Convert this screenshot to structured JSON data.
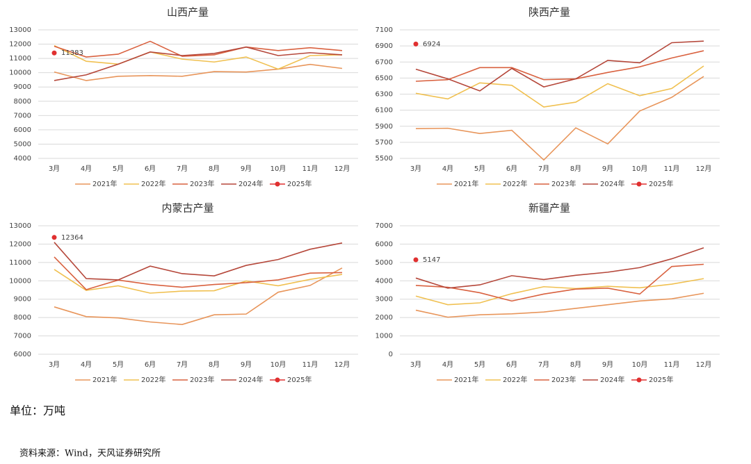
{
  "chart_data": [
    {
      "type": "line",
      "title": "山西产量",
      "categories": [
        "3月",
        "4月",
        "5月",
        "6月",
        "7月",
        "8月",
        "9月",
        "10月",
        "11月",
        "12月"
      ],
      "ylim": [
        4000,
        13000
      ],
      "yticks": [
        4000,
        5000,
        6000,
        7000,
        8000,
        9000,
        10000,
        11000,
        12000,
        13000
      ],
      "grid": true,
      "series": [
        {
          "name": "2021年",
          "color": "#e8955a",
          "values": [
            10050,
            9450,
            9750,
            9800,
            9750,
            10080,
            10050,
            10250,
            10580,
            10300
          ]
        },
        {
          "name": "2022年",
          "color": "#f0c050",
          "values": [
            11900,
            10800,
            10600,
            11450,
            10950,
            10750,
            11100,
            10250,
            11200,
            11250
          ]
        },
        {
          "name": "2023年",
          "color": "#d9613f",
          "values": [
            11850,
            11100,
            11300,
            12200,
            11150,
            11250,
            11800,
            11550,
            11750,
            11550
          ]
        },
        {
          "name": "2024年",
          "color": "#b5473a",
          "values": [
            9450,
            9850,
            10600,
            11450,
            11200,
            11350,
            11800,
            11200,
            11400,
            11250
          ]
        },
        {
          "name": "2025年",
          "color": "#e03030",
          "values": [
            11383,
            null,
            null,
            null,
            null,
            null,
            null,
            null,
            null,
            null
          ]
        }
      ]
    },
    {
      "type": "line",
      "title": "陕西产量",
      "categories": [
        "3月",
        "4月",
        "5月",
        "6月",
        "7月",
        "8月",
        "9月",
        "10月",
        "11月",
        "12月"
      ],
      "ylim": [
        5500,
        7100
      ],
      "yticks": [
        5500,
        5700,
        5900,
        6100,
        6300,
        6500,
        6700,
        6900,
        7100
      ],
      "grid": true,
      "series": [
        {
          "name": "2021年",
          "color": "#e8955a",
          "values": [
            5870,
            5875,
            5810,
            5850,
            5480,
            5880,
            5680,
            6090,
            6260,
            6520
          ]
        },
        {
          "name": "2022年",
          "color": "#f0c050",
          "values": [
            6310,
            6240,
            6440,
            6410,
            6140,
            6200,
            6430,
            6280,
            6370,
            6650
          ]
        },
        {
          "name": "2023年",
          "color": "#d9613f",
          "values": [
            6460,
            6480,
            6630,
            6630,
            6480,
            6490,
            6570,
            6640,
            6750,
            6840
          ]
        },
        {
          "name": "2024年",
          "color": "#b5473a",
          "values": [
            6610,
            6490,
            6340,
            6620,
            6390,
            6490,
            6720,
            6690,
            6940,
            6960
          ]
        },
        {
          "name": "2025年",
          "color": "#e03030",
          "values": [
            6924,
            null,
            null,
            null,
            null,
            null,
            null,
            null,
            null,
            null
          ]
        }
      ]
    },
    {
      "type": "line",
      "title": "内蒙古产量",
      "categories": [
        "3月",
        "4月",
        "5月",
        "6月",
        "7月",
        "8月",
        "9月",
        "10月",
        "11月",
        "12月"
      ],
      "ylim": [
        6000,
        13000
      ],
      "yticks": [
        6000,
        7000,
        8000,
        9000,
        10000,
        11000,
        12000,
        13000
      ],
      "grid": true,
      "series": [
        {
          "name": "2021年",
          "color": "#e8955a",
          "values": [
            8580,
            8050,
            7980,
            7760,
            7620,
            8150,
            8190,
            9380,
            9750,
            10700
          ]
        },
        {
          "name": "2022年",
          "color": "#f0c050",
          "values": [
            10620,
            9480,
            9730,
            9330,
            9440,
            9460,
            9990,
            9730,
            10080,
            10350
          ]
        },
        {
          "name": "2023年",
          "color": "#d9613f",
          "values": [
            11300,
            9520,
            10040,
            9800,
            9650,
            9800,
            9900,
            10050,
            10420,
            10450
          ]
        },
        {
          "name": "2024年",
          "color": "#b5473a",
          "values": [
            12100,
            10120,
            10050,
            10800,
            10390,
            10270,
            10840,
            11160,
            11720,
            12060
          ]
        },
        {
          "name": "2025年",
          "color": "#e03030",
          "values": [
            12364,
            null,
            null,
            null,
            null,
            null,
            null,
            null,
            null,
            null
          ]
        }
      ]
    },
    {
      "type": "line",
      "title": "新疆产量",
      "categories": [
        "3月",
        "4月",
        "5月",
        "6月",
        "7月",
        "8月",
        "9月",
        "10月",
        "11月",
        "12月"
      ],
      "ylim": [
        0,
        7000
      ],
      "yticks": [
        0,
        1000,
        2000,
        3000,
        4000,
        5000,
        6000,
        7000
      ],
      "grid": true,
      "series": [
        {
          "name": "2021年",
          "color": "#e8955a",
          "values": [
            2400,
            2020,
            2150,
            2200,
            2300,
            2500,
            2700,
            2900,
            3020,
            3320
          ]
        },
        {
          "name": "2022年",
          "color": "#f0c050",
          "values": [
            3170,
            2700,
            2800,
            3300,
            3680,
            3580,
            3700,
            3620,
            3820,
            4120
          ]
        },
        {
          "name": "2023年",
          "color": "#d9613f",
          "values": [
            3750,
            3650,
            3350,
            2900,
            3280,
            3550,
            3600,
            3280,
            4780,
            4900
          ]
        },
        {
          "name": "2024年",
          "color": "#b5473a",
          "values": [
            4150,
            3600,
            3780,
            4280,
            4070,
            4300,
            4470,
            4720,
            5200,
            5800
          ]
        },
        {
          "name": "2025年",
          "color": "#e03030",
          "values": [
            5147,
            null,
            null,
            null,
            null,
            null,
            null,
            null,
            null,
            null
          ]
        }
      ]
    }
  ],
  "unit": "单位：万吨",
  "source": "资料来源：Wind，天风证券研究所"
}
